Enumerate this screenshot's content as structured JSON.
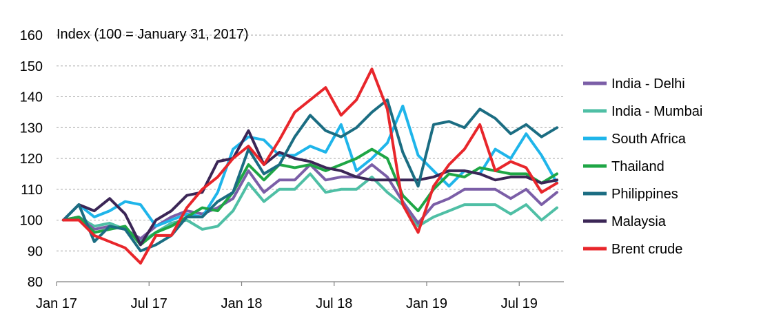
{
  "chart_data": {
    "type": "line",
    "ylabel": "Index (100 = January 31, 2017)",
    "ylim": [
      80,
      160
    ],
    "yticks": [
      80,
      90,
      100,
      110,
      120,
      130,
      140,
      150,
      160
    ],
    "x_ticks": [
      "Jan 17",
      "Jul 17",
      "Jan 18",
      "Jul 18",
      "Jan 19",
      "Jul 19"
    ],
    "x": [
      "Jan 17",
      "Feb 17",
      "Mar 17",
      "Apr 17",
      "May 17",
      "Jun 17",
      "Jul 17",
      "Aug 17",
      "Sep 17",
      "Oct 17",
      "Nov 17",
      "Dec 17",
      "Jan 18",
      "Feb 18",
      "Mar 18",
      "Apr 18",
      "May 18",
      "Jun 18",
      "Jul 18",
      "Aug 18",
      "Sep 18",
      "Oct 18",
      "Nov 18",
      "Dec 18",
      "Jan 19",
      "Feb 19",
      "Mar 19",
      "Apr 19",
      "May 19",
      "Jun 19",
      "Jul 19",
      "Aug 19",
      "Sep 19"
    ],
    "grid": "horizontal-dashed",
    "legend_position": "right",
    "series": [
      {
        "name": "India - Delhi",
        "color": "#7b5ea7",
        "values": [
          100,
          101,
          97,
          98,
          97,
          94,
          98,
          101,
          103,
          102,
          104,
          107,
          116,
          109,
          113,
          113,
          118,
          113,
          114,
          114,
          118,
          114,
          106,
          99,
          105,
          107,
          110,
          110,
          110,
          107,
          110,
          105,
          109
        ]
      },
      {
        "name": "India - Mumbai",
        "color": "#4fbfa5",
        "values": [
          100,
          101,
          98,
          99,
          97,
          93,
          96,
          99,
          100,
          97,
          98,
          103,
          112,
          106,
          110,
          110,
          115,
          109,
          110,
          110,
          114,
          109,
          105,
          98,
          101,
          103,
          105,
          105,
          105,
          102,
          105,
          100,
          104
        ]
      },
      {
        "name": "South Africa",
        "color": "#1fb5ea",
        "values": [
          100,
          105,
          101,
          103,
          106,
          105,
          98,
          100,
          102,
          101,
          109,
          123,
          127,
          126,
          121,
          121,
          124,
          122,
          131,
          116,
          120,
          125,
          137,
          121,
          116,
          111,
          116,
          115,
          123,
          120,
          128,
          121,
          112
        ]
      },
      {
        "name": "Thailand",
        "color": "#1ea645",
        "values": [
          100,
          101,
          96,
          97,
          98,
          92,
          96,
          98,
          101,
          104,
          103,
          109,
          118,
          113,
          118,
          117,
          118,
          116,
          118,
          120,
          123,
          120,
          108,
          103,
          110,
          115,
          114,
          117,
          116,
          115,
          115,
          112,
          115
        ]
      },
      {
        "name": "Philippines",
        "color": "#1b6d82",
        "values": [
          100,
          105,
          93,
          98,
          97,
          90,
          92,
          95,
          101,
          101,
          106,
          109,
          123,
          115,
          118,
          127,
          134,
          129,
          127,
          130,
          135,
          139,
          122,
          111,
          131,
          132,
          130,
          136,
          133,
          128,
          131,
          127,
          130
        ]
      },
      {
        "name": "Malaysia",
        "color": "#3b2656",
        "values": [
          100,
          105,
          103,
          107,
          102,
          92,
          100,
          103,
          108,
          109,
          119,
          120,
          129,
          118,
          122,
          120,
          119,
          117,
          116,
          114,
          113,
          113,
          113,
          113,
          114,
          116,
          116,
          115,
          113,
          114,
          114,
          112,
          113
        ]
      },
      {
        "name": "Brent crude",
        "color": "#e8262b",
        "values": [
          100,
          100,
          95,
          93,
          91,
          86,
          95,
          95,
          104,
          110,
          114,
          120,
          124,
          118,
          126,
          135,
          139,
          143,
          134,
          139,
          149,
          136,
          105,
          96,
          111,
          118,
          123,
          131,
          116,
          119,
          117,
          109,
          112
        ]
      }
    ]
  }
}
